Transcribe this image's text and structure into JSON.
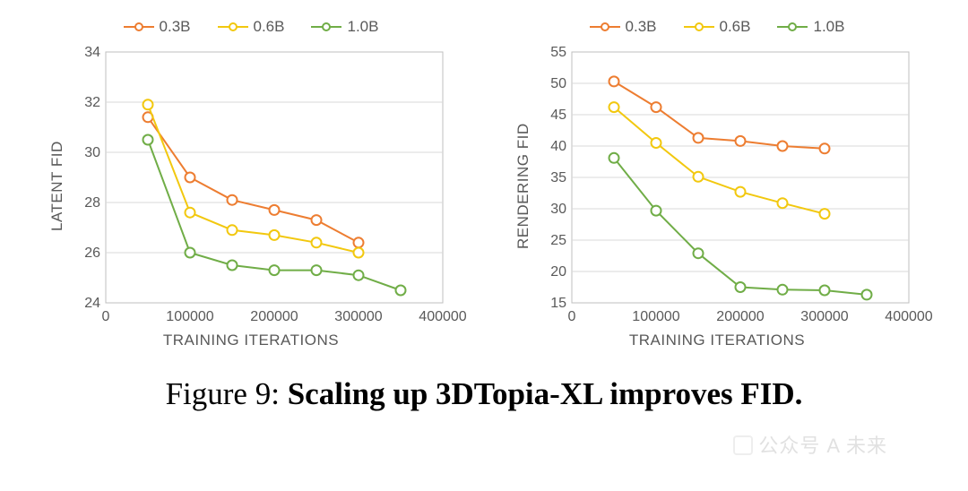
{
  "caption_prefix": "Figure 9: ",
  "caption_bold": "Scaling up 3DTopia-XL improves FID.",
  "watermark": "公众号 A    未来",
  "series_defs": [
    {
      "id": "s03b",
      "label": "0.3B",
      "color": "#ed7d31"
    },
    {
      "id": "s06b",
      "label": "0.6B",
      "color": "#f2c80f"
    },
    {
      "id": "s10b",
      "label": "1.0B",
      "color": "#70ad47"
    }
  ],
  "chart_style": {
    "background_color": "#ffffff",
    "grid_color": "#d9d9d9",
    "axis_color": "#bfbfbf",
    "tick_font_color": "#595959",
    "tick_fontsize": 16,
    "label_fontsize": 17,
    "line_width": 2,
    "marker_radius": 5.5,
    "marker_fill": "#ffffff",
    "marker_stroke_width": 2
  },
  "left_chart": {
    "ylabel": "LATENT FID",
    "xlabel": "TRAINING ITERATIONS",
    "xlim": [
      0,
      400000
    ],
    "ylim": [
      24,
      34
    ],
    "xticks": [
      0,
      100000,
      200000,
      300000,
      400000
    ],
    "yticks": [
      24,
      26,
      28,
      30,
      32,
      34
    ],
    "series": [
      {
        "ref": "s03b",
        "points": [
          [
            50000,
            31.4
          ],
          [
            100000,
            29.0
          ],
          [
            150000,
            28.1
          ],
          [
            200000,
            27.7
          ],
          [
            250000,
            27.3
          ],
          [
            300000,
            26.4
          ]
        ]
      },
      {
        "ref": "s06b",
        "points": [
          [
            50000,
            31.9
          ],
          [
            100000,
            27.6
          ],
          [
            150000,
            26.9
          ],
          [
            200000,
            26.7
          ],
          [
            250000,
            26.4
          ],
          [
            300000,
            26.0
          ]
        ]
      },
      {
        "ref": "s10b",
        "points": [
          [
            50000,
            30.5
          ],
          [
            100000,
            26.0
          ],
          [
            150000,
            25.5
          ],
          [
            200000,
            25.3
          ],
          [
            250000,
            25.3
          ],
          [
            300000,
            25.1
          ],
          [
            350000,
            24.5
          ]
        ]
      }
    ]
  },
  "right_chart": {
    "ylabel": "RENDERING FID",
    "xlabel": "TRAINING ITERATIONS",
    "xlim": [
      0,
      400000
    ],
    "ylim": [
      15,
      55
    ],
    "xticks": [
      0,
      100000,
      200000,
      300000,
      400000
    ],
    "yticks": [
      15,
      20,
      25,
      30,
      35,
      40,
      45,
      50,
      55
    ],
    "series": [
      {
        "ref": "s03b",
        "points": [
          [
            50000,
            50.3
          ],
          [
            100000,
            46.2
          ],
          [
            150000,
            41.3
          ],
          [
            200000,
            40.8
          ],
          [
            250000,
            40.0
          ],
          [
            300000,
            39.6
          ]
        ]
      },
      {
        "ref": "s06b",
        "points": [
          [
            50000,
            46.2
          ],
          [
            100000,
            40.5
          ],
          [
            150000,
            35.1
          ],
          [
            200000,
            32.7
          ],
          [
            250000,
            30.9
          ],
          [
            300000,
            29.2
          ]
        ]
      },
      {
        "ref": "s10b",
        "points": [
          [
            50000,
            38.1
          ],
          [
            100000,
            29.7
          ],
          [
            150000,
            22.9
          ],
          [
            200000,
            17.5
          ],
          [
            250000,
            17.1
          ],
          [
            300000,
            17.0
          ],
          [
            350000,
            16.3
          ]
        ]
      }
    ]
  }
}
